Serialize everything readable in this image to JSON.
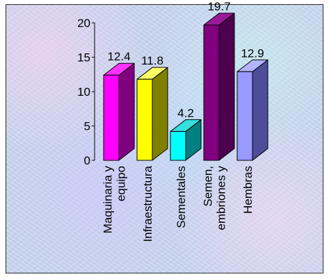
{
  "chart_data": {
    "type": "bar",
    "categories": [
      [
        "Maquinaria y",
        "equipo"
      ],
      [
        "Infraestructura"
      ],
      [
        "Sementales"
      ],
      [
        "Semen,",
        "embriones y"
      ],
      [
        "Hembras"
      ]
    ],
    "values": [
      12.4,
      11.8,
      4.2,
      19.7,
      12.9
    ],
    "data_labels": [
      "12.4",
      "11.8",
      "4.2",
      "19.7",
      "12.9"
    ],
    "yticks": [
      "0",
      "5",
      "10",
      "15",
      "20"
    ],
    "ylim": [
      0,
      20
    ],
    "bar_colors": [
      {
        "front": "#ff00ff",
        "side": "#800080",
        "top": "#ff33ff"
      },
      {
        "front": "#ffff00",
        "side": "#808000",
        "top": "#ffff66"
      },
      {
        "front": "#00ffff",
        "side": "#008080",
        "top": "#33e0e0"
      },
      {
        "front": "#800080",
        "side": "#4d004d",
        "top": "#9a1a9a"
      },
      {
        "front": "#9999ff",
        "side": "#4d4d99",
        "top": "#b3b3ff"
      }
    ],
    "grid": false,
    "legend": "none",
    "three_d": true
  }
}
